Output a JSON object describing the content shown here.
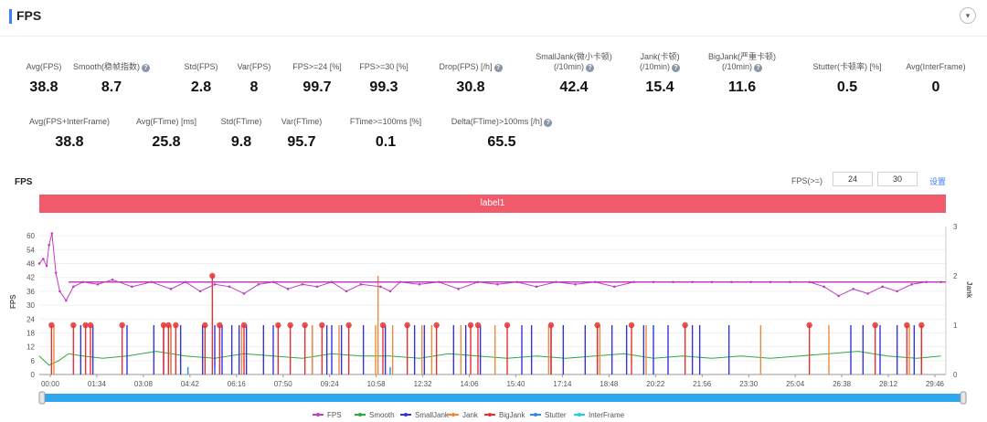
{
  "header": {
    "title": "FPS",
    "collapse_icon": "chevron-down-icon"
  },
  "metrics_row1": [
    {
      "label": "Avg(FPS)",
      "value": "38.8",
      "help": false
    },
    {
      "label": "Smooth(稳帧指数)",
      "value": "8.7",
      "help": true
    },
    {
      "label": "Std(FPS)",
      "value": "2.8",
      "help": false
    },
    {
      "label": "Var(FPS)",
      "value": "8",
      "help": false
    },
    {
      "label": "FPS>=24 [%]",
      "value": "99.7",
      "help": false
    },
    {
      "label": "FPS>=30 [%]",
      "value": "99.3",
      "help": false
    },
    {
      "label": "Drop(FPS) [/h]",
      "value": "30.8",
      "help": true
    },
    {
      "label": "SmallJank(微小卡顿)",
      "label2": "(/10min)",
      "value": "42.4",
      "help": true
    },
    {
      "label": "Jank(卡顿)",
      "label2": "(/10min)",
      "value": "15.4",
      "help": true
    },
    {
      "label": "BigJank(严重卡顿)",
      "label2": "(/10min)",
      "value": "11.6",
      "help": true
    },
    {
      "label": "Stutter(卡顿率) [%]",
      "value": "0.5",
      "help": false
    },
    {
      "label": "Avg(InterFrame)",
      "value": "0",
      "help": false
    }
  ],
  "metrics_row2": [
    {
      "label": "Avg(FPS+InterFrame)",
      "value": "38.8",
      "help": false
    },
    {
      "label": "Avg(FTime) [ms]",
      "value": "25.8",
      "help": false
    },
    {
      "label": "Std(FTime)",
      "value": "9.8",
      "help": false
    },
    {
      "label": "Var(FTime)",
      "value": "95.7",
      "help": false
    },
    {
      "label": "FTime>=100ms [%]",
      "value": "0.1",
      "help": false
    },
    {
      "label": "Delta(FTime)>100ms [/h]",
      "value": "65.5",
      "help": true
    }
  ],
  "chart_controls": {
    "title": "FPS",
    "threshold_label": "FPS(>=)",
    "threshold_1": "24",
    "threshold_2": "30",
    "apply_label": "设置"
  },
  "label_band": "label1",
  "chart_data": {
    "type": "line",
    "title": "",
    "ylabel_left": "FPS",
    "ylabel_right": "Jank",
    "ylim_left": [
      0,
      64
    ],
    "yticks_left": [
      0,
      6,
      12,
      18,
      24,
      30,
      36,
      42,
      48,
      54,
      60
    ],
    "ylim_right": [
      0,
      3
    ],
    "yticks_right": [
      0,
      1,
      2,
      3
    ],
    "xticks": [
      "00:00",
      "01:34",
      "03:08",
      "04:42",
      "06:16",
      "07:50",
      "09:24",
      "10:58",
      "12:32",
      "14:06",
      "15:40",
      "17:14",
      "18:48",
      "20:22",
      "21:56",
      "23:30",
      "25:04",
      "26:38",
      "28:12",
      "29:46"
    ],
    "duration_seconds": 1860,
    "legend": [
      "FPS",
      "Smooth",
      "SmallJank",
      "Jank",
      "BigJank",
      "Stutter",
      "InterFrame"
    ],
    "series_colors": {
      "FPS": "#c040c0",
      "Smooth": "#2eaa3c",
      "SmallJank": "#3333dd",
      "Jank": "#f08a3c",
      "BigJank": "#e83030",
      "Stutter": "#3388ee",
      "InterFrame": "#22ccdd"
    },
    "fps_series": {
      "x": [
        0,
        8,
        15,
        20,
        26,
        34,
        42,
        55,
        70,
        90,
        120,
        150,
        190,
        230,
        270,
        300,
        330,
        360,
        390,
        420,
        450,
        480,
        510,
        540,
        570,
        600,
        630,
        660,
        700,
        720,
        740,
        780,
        820,
        860,
        900,
        940,
        980,
        1020,
        1060,
        1100,
        1140,
        1180,
        1220,
        1260,
        1300,
        1340,
        1380,
        1420,
        1460,
        1500,
        1540,
        1580,
        1610,
        1640,
        1670,
        1700,
        1730,
        1760,
        1790,
        1820,
        1850
      ],
      "y": [
        48,
        50,
        47,
        56,
        61,
        44,
        36,
        32,
        38,
        40,
        39,
        41,
        38,
        40,
        37,
        40,
        36,
        39,
        38,
        35,
        39,
        40,
        37,
        39,
        38,
        40,
        36,
        39,
        38,
        36,
        40,
        39,
        40,
        37,
        40,
        39,
        40,
        38,
        40,
        39,
        40,
        38,
        40,
        40,
        40,
        40,
        40,
        40,
        40,
        40,
        40,
        40,
        38,
        34,
        37,
        35,
        38,
        36,
        39,
        40,
        40
      ]
    },
    "fps_reference_line": 40,
    "smooth_series": {
      "x": [
        0,
        20,
        40,
        60,
        90,
        130,
        180,
        240,
        300,
        360,
        420,
        480,
        540,
        600,
        660,
        720,
        780,
        840,
        900,
        960,
        1020,
        1080,
        1140,
        1200,
        1260,
        1320,
        1380,
        1440,
        1500,
        1560,
        1620,
        1680,
        1740,
        1800,
        1850
      ],
      "y": [
        8,
        4,
        6,
        9,
        8,
        7,
        8,
        10,
        8,
        7,
        9,
        8,
        7,
        9,
        8,
        8,
        7,
        9,
        8,
        7,
        8,
        7,
        8,
        9,
        7,
        8,
        7,
        8,
        7,
        8,
        9,
        10,
        8,
        7,
        8
      ]
    },
    "small_jank_times": [
      85,
      110,
      180,
      235,
      255,
      270,
      290,
      335,
      360,
      375,
      395,
      410,
      425,
      460,
      480,
      560,
      590,
      600,
      620,
      665,
      710,
      770,
      790,
      850,
      875,
      905,
      990,
      1010,
      1050,
      1075,
      1120,
      1145,
      1175,
      1205,
      1240,
      1260,
      1290,
      1340,
      1355,
      1415,
      1665,
      1690,
      1725,
      1760,
      1795
    ],
    "jank_times": [
      30,
      270,
      415,
      560,
      615,
      690,
      725,
      785,
      805,
      865,
      935,
      1045,
      1150,
      1245,
      1480,
      1620,
      1785,
      1810
    ],
    "big_jank_times": [
      25,
      70,
      95,
      105,
      170,
      255,
      265,
      280,
      340,
      370,
      420,
      490,
      515,
      545,
      580,
      635,
      705,
      755,
      815,
      885,
      900,
      960,
      1050,
      1145,
      1215,
      1325,
      1580,
      1715,
      1780,
      1810
    ],
    "big_jank_high_times": [
      355
    ],
    "jank_high_times": [
      695
    ],
    "stutter_times": [
      305,
      360,
      720
    ]
  }
}
